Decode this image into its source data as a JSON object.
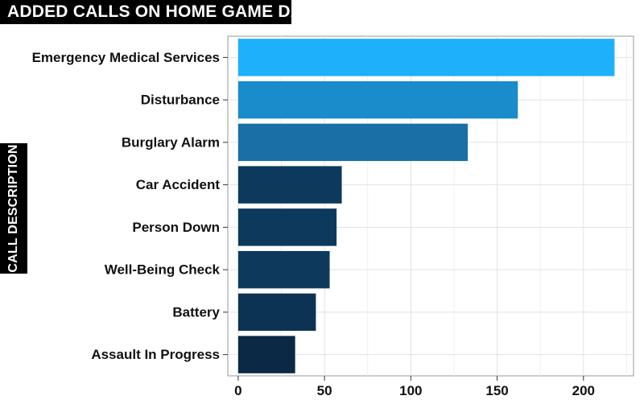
{
  "chart_data": {
    "type": "bar",
    "orientation": "horizontal",
    "title": "ADDED CALLS ON HOME GAME DAYS",
    "xlabel": "",
    "ylabel": "CALL DESCRIPTION",
    "categories": [
      "Emergency Medical Services",
      "Disturbance",
      "Burglary Alarm",
      "Car Accident",
      "Person Down",
      "Well-Being Check",
      "Battery",
      "Assault In Progress"
    ],
    "values": [
      218,
      162,
      133,
      60,
      57,
      53,
      45,
      33
    ],
    "bar_colors": [
      "#1fb0fb",
      "#1a8bcb",
      "#1a6fa6",
      "#0d3a5c",
      "#0d3a5c",
      "#0d3a5c",
      "#0c3354",
      "#0b2844"
    ],
    "xlim": [
      -6,
      229
    ],
    "xticks": [
      0,
      50,
      100,
      150,
      200
    ],
    "grid": true,
    "legend": "none"
  }
}
